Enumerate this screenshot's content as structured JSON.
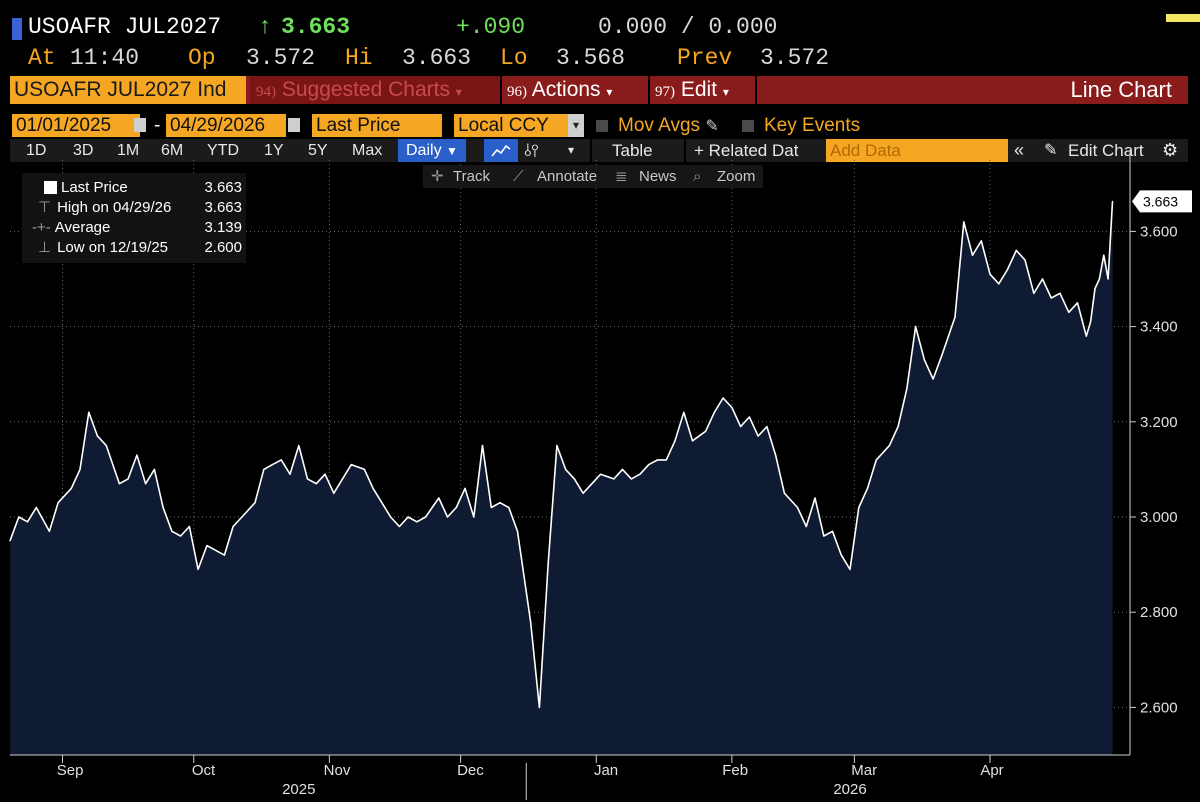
{
  "header": {
    "ticker": "USOAFR JUL2027",
    "arrow": "↑",
    "last": "3.663",
    "change": "+.090",
    "bid_ask": "0.000 / 0.000",
    "at_label": "At",
    "time": "11:40",
    "open_label": "Op",
    "open": "3.572",
    "high_label": "Hi",
    "high": "3.663",
    "low_label": "Lo",
    "low": "3.568",
    "prev_label": "Prev",
    "prev": "3.572"
  },
  "menubar": {
    "security_field": "USOAFR JUL2027 Ind",
    "suggested_num": "94)",
    "suggested_label": "Suggested Charts",
    "actions_num": "96)",
    "actions_label": "Actions",
    "edit_num": "97)",
    "edit_label": "Edit",
    "chart_type_label": "Line Chart"
  },
  "controls": {
    "start_date": "01/01/2025",
    "dash": "-",
    "end_date": "04/29/2026",
    "field": "Last Price",
    "currency": "Local CCY",
    "mov_avgs": "Mov Avgs",
    "key_events": "Key Events"
  },
  "periods": {
    "items": [
      "1D",
      "3D",
      "1M",
      "6M",
      "YTD",
      "1Y",
      "5Y",
      "Max"
    ],
    "frequency": "Daily",
    "table": "Table",
    "related": "+ Related Dat",
    "add_data_placeholder": "Add Data",
    "edit_chart": "Edit Chart"
  },
  "toolbar": {
    "track": "Track",
    "annotate": "Annotate",
    "news": "News",
    "zoom": "Zoom"
  },
  "legend": {
    "last_label": "Last Price",
    "last_value": "3.663",
    "high_label": "High on 04/29/26",
    "high_value": "3.663",
    "avg_label": "Average",
    "avg_value": "3.139",
    "low_label": "Low on 12/19/25",
    "low_value": "2.600"
  },
  "colors": {
    "background": "#000000",
    "accent_orange": "#f5a623",
    "menu_red": "#8a1b1b",
    "up_green": "#6ee05a",
    "line": "#ffffff",
    "area_fill": "#0f1a33",
    "grid": "#6a6a6a"
  },
  "icons": [
    "calendar-icon",
    "dropdown-arrow-icon",
    "pencil-icon",
    "track-crosshair-icon",
    "annotate-icon",
    "news-icon",
    "zoom-icon",
    "collapse-icon",
    "gear-icon",
    "line-chart-icon",
    "bar-chart-icon"
  ],
  "chart_data": {
    "type": "area",
    "title": "",
    "xlabel": "",
    "ylabel": "",
    "ylim": [
      2.5,
      3.75
    ],
    "yticks": [
      2.6,
      2.8,
      3.0,
      3.2,
      3.4,
      3.6
    ],
    "ytick_labels": [
      "2.600",
      "2.800",
      "3.000",
      "3.200",
      "3.400",
      "3.600"
    ],
    "last_value_label": "3.663",
    "grid": true,
    "x_range": [
      "2025-08-20",
      "2026-05-03"
    ],
    "month_ticks": [
      {
        "label": "Sep",
        "date": "2025-09-01"
      },
      {
        "label": "Oct",
        "date": "2025-10-01"
      },
      {
        "label": "Nov",
        "date": "2025-11-01"
      },
      {
        "label": "Dec",
        "date": "2025-12-01"
      },
      {
        "label": "Jan",
        "date": "2026-01-01"
      },
      {
        "label": "Feb",
        "date": "2026-02-01"
      },
      {
        "label": "Mar",
        "date": "2026-03-01"
      },
      {
        "label": "Apr",
        "date": "2026-04-01"
      }
    ],
    "year_labels": [
      {
        "label": "2025",
        "date": "2025-10-25"
      },
      {
        "label": "2026",
        "date": "2026-02-28"
      }
    ],
    "series": [
      {
        "points": [
          [
            "2025-08-20",
            2.95
          ],
          [
            "2025-08-22",
            3.0
          ],
          [
            "2025-08-24",
            2.99
          ],
          [
            "2025-08-26",
            3.02
          ],
          [
            "2025-08-29",
            2.97
          ],
          [
            "2025-08-31",
            3.03
          ],
          [
            "2025-09-03",
            3.06
          ],
          [
            "2025-09-05",
            3.1
          ],
          [
            "2025-09-07",
            3.22
          ],
          [
            "2025-09-09",
            3.17
          ],
          [
            "2025-09-11",
            3.15
          ],
          [
            "2025-09-14",
            3.07
          ],
          [
            "2025-09-16",
            3.08
          ],
          [
            "2025-09-18",
            3.13
          ],
          [
            "2025-09-20",
            3.07
          ],
          [
            "2025-09-22",
            3.1
          ],
          [
            "2025-09-24",
            3.02
          ],
          [
            "2025-09-26",
            2.97
          ],
          [
            "2025-09-28",
            2.96
          ],
          [
            "2025-09-30",
            2.98
          ],
          [
            "2025-10-02",
            2.89
          ],
          [
            "2025-10-04",
            2.94
          ],
          [
            "2025-10-06",
            2.93
          ],
          [
            "2025-10-08",
            2.92
          ],
          [
            "2025-10-10",
            2.98
          ],
          [
            "2025-10-12",
            3.0
          ],
          [
            "2025-10-15",
            3.03
          ],
          [
            "2025-10-17",
            3.1
          ],
          [
            "2025-10-19",
            3.11
          ],
          [
            "2025-10-21",
            3.12
          ],
          [
            "2025-10-23",
            3.09
          ],
          [
            "2025-10-25",
            3.15
          ],
          [
            "2025-10-27",
            3.08
          ],
          [
            "2025-10-29",
            3.07
          ],
          [
            "2025-10-31",
            3.09
          ],
          [
            "2025-11-02",
            3.05
          ],
          [
            "2025-11-04",
            3.08
          ],
          [
            "2025-11-06",
            3.11
          ],
          [
            "2025-11-09",
            3.1
          ],
          [
            "2025-11-11",
            3.06
          ],
          [
            "2025-11-13",
            3.03
          ],
          [
            "2025-11-15",
            3.0
          ],
          [
            "2025-11-17",
            2.98
          ],
          [
            "2025-11-19",
            3.0
          ],
          [
            "2025-11-21",
            2.99
          ],
          [
            "2025-11-23",
            3.0
          ],
          [
            "2025-11-26",
            3.04
          ],
          [
            "2025-11-28",
            3.0
          ],
          [
            "2025-11-30",
            3.02
          ],
          [
            "2025-12-02",
            3.06
          ],
          [
            "2025-12-04",
            3.0
          ],
          [
            "2025-12-06",
            3.15
          ],
          [
            "2025-12-08",
            3.02
          ],
          [
            "2025-12-10",
            3.03
          ],
          [
            "2025-12-12",
            3.02
          ],
          [
            "2025-12-14",
            2.97
          ],
          [
            "2025-12-17",
            2.78
          ],
          [
            "2025-12-19",
            2.6
          ],
          [
            "2025-12-21",
            2.9
          ],
          [
            "2025-12-23",
            3.15
          ],
          [
            "2025-12-25",
            3.1
          ],
          [
            "2025-12-27",
            3.08
          ],
          [
            "2025-12-29",
            3.05
          ],
          [
            "2025-12-31",
            3.07
          ],
          [
            "2026-01-02",
            3.09
          ],
          [
            "2026-01-05",
            3.08
          ],
          [
            "2026-01-07",
            3.1
          ],
          [
            "2026-01-09",
            3.08
          ],
          [
            "2026-01-11",
            3.09
          ],
          [
            "2026-01-13",
            3.11
          ],
          [
            "2026-01-15",
            3.12
          ],
          [
            "2026-01-17",
            3.12
          ],
          [
            "2026-01-19",
            3.16
          ],
          [
            "2026-01-21",
            3.22
          ],
          [
            "2026-01-23",
            3.16
          ],
          [
            "2026-01-26",
            3.18
          ],
          [
            "2026-01-28",
            3.22
          ],
          [
            "2026-01-30",
            3.25
          ],
          [
            "2026-02-01",
            3.23
          ],
          [
            "2026-02-03",
            3.19
          ],
          [
            "2026-02-05",
            3.21
          ],
          [
            "2026-02-07",
            3.17
          ],
          [
            "2026-02-09",
            3.19
          ],
          [
            "2026-02-11",
            3.13
          ],
          [
            "2026-02-13",
            3.05
          ],
          [
            "2026-02-16",
            3.02
          ],
          [
            "2026-02-18",
            2.98
          ],
          [
            "2026-02-20",
            3.04
          ],
          [
            "2026-02-22",
            2.96
          ],
          [
            "2026-02-24",
            2.97
          ],
          [
            "2026-02-26",
            2.92
          ],
          [
            "2026-02-28",
            2.89
          ],
          [
            "2026-03-02",
            3.02
          ],
          [
            "2026-03-04",
            3.06
          ],
          [
            "2026-03-06",
            3.12
          ],
          [
            "2026-03-09",
            3.15
          ],
          [
            "2026-03-11",
            3.19
          ],
          [
            "2026-03-13",
            3.27
          ],
          [
            "2026-03-15",
            3.4
          ],
          [
            "2026-03-17",
            3.33
          ],
          [
            "2026-03-19",
            3.29
          ],
          [
            "2026-03-21",
            3.34
          ],
          [
            "2026-03-24",
            3.42
          ],
          [
            "2026-03-26",
            3.62
          ],
          [
            "2026-03-28",
            3.55
          ],
          [
            "2026-03-30",
            3.58
          ],
          [
            "2026-04-01",
            3.51
          ],
          [
            "2026-04-03",
            3.49
          ],
          [
            "2026-04-05",
            3.52
          ],
          [
            "2026-04-07",
            3.56
          ],
          [
            "2026-04-09",
            3.54
          ],
          [
            "2026-04-11",
            3.47
          ],
          [
            "2026-04-13",
            3.5
          ],
          [
            "2026-04-15",
            3.46
          ],
          [
            "2026-04-17",
            3.47
          ],
          [
            "2026-04-19",
            3.43
          ],
          [
            "2026-04-21",
            3.45
          ],
          [
            "2026-04-23",
            3.38
          ],
          [
            "2026-04-24",
            3.41
          ],
          [
            "2026-04-25",
            3.48
          ],
          [
            "2026-04-26",
            3.5
          ],
          [
            "2026-04-27",
            3.55
          ],
          [
            "2026-04-28",
            3.5
          ],
          [
            "2026-04-29",
            3.663
          ]
        ]
      }
    ]
  }
}
